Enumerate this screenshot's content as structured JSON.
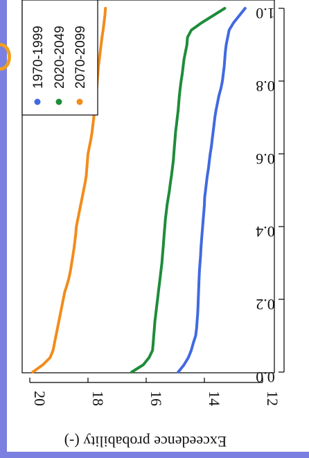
{
  "chart_data": {
    "type": "line",
    "orientation": "rotated-180",
    "xlabel": "Exceedence probability (-)",
    "ylabel": "",
    "xlim": [
      0,
      1
    ],
    "ylim": [
      12,
      20
    ],
    "x_ticks": [
      0.0,
      0.2,
      0.4,
      0.6,
      0.8,
      1.0
    ],
    "x_tick_labels": [
      "0.0",
      "0.2",
      "0.4",
      "0.6",
      "0.8",
      "1.0"
    ],
    "y_ticks": [
      12,
      14,
      16,
      18,
      20
    ],
    "y_tick_labels": [
      "12",
      "14",
      "16",
      "18",
      "20"
    ],
    "legend": {
      "position": "top-left"
    },
    "series": [
      {
        "name": "1970-1999",
        "color": "#4169e1",
        "x": [
          1.0,
          0.98,
          0.96,
          0.94,
          0.92,
          0.9,
          0.88,
          0.86,
          0.84,
          0.82,
          0.8,
          0.78,
          0.76,
          0.74,
          0.72,
          0.7,
          0.68,
          0.66,
          0.64,
          0.62,
          0.6,
          0.58,
          0.56,
          0.54,
          0.52,
          0.5,
          0.48,
          0.46,
          0.44,
          0.42,
          0.4,
          0.38,
          0.36,
          0.34,
          0.32,
          0.3,
          0.28,
          0.26,
          0.24,
          0.22,
          0.2,
          0.18,
          0.16,
          0.14,
          0.12,
          0.1,
          0.08,
          0.06,
          0.04,
          0.02,
          0.0
        ],
        "y": [
          12.6,
          12.8,
          13.0,
          13.15,
          13.2,
          13.25,
          13.28,
          13.3,
          13.32,
          13.35,
          13.38,
          13.43,
          13.5,
          13.55,
          13.6,
          13.64,
          13.67,
          13.7,
          13.73,
          13.76,
          13.8,
          13.83,
          13.86,
          13.9,
          13.93,
          13.96,
          13.99,
          14.0,
          14.02,
          14.04,
          14.06,
          14.08,
          14.1,
          14.12,
          14.13,
          14.15,
          14.17,
          14.18,
          14.19,
          14.2,
          14.21,
          14.22,
          14.23,
          14.25,
          14.27,
          14.3,
          14.38,
          14.45,
          14.55,
          14.7,
          14.9
        ]
      },
      {
        "name": "2020-2049",
        "color": "#1e8c3a",
        "x": [
          1.0,
          0.98,
          0.96,
          0.94,
          0.92,
          0.9,
          0.88,
          0.86,
          0.84,
          0.82,
          0.8,
          0.78,
          0.76,
          0.74,
          0.72,
          0.7,
          0.68,
          0.66,
          0.64,
          0.62,
          0.6,
          0.58,
          0.56,
          0.54,
          0.52,
          0.5,
          0.48,
          0.46,
          0.44,
          0.42,
          0.4,
          0.38,
          0.36,
          0.34,
          0.32,
          0.3,
          0.28,
          0.26,
          0.24,
          0.22,
          0.2,
          0.18,
          0.16,
          0.14,
          0.12,
          0.1,
          0.08,
          0.06,
          0.04,
          0.02,
          0.0
        ],
        "y": [
          13.3,
          13.7,
          14.1,
          14.45,
          14.58,
          14.6,
          14.65,
          14.7,
          14.73,
          14.76,
          14.8,
          14.83,
          14.86,
          14.88,
          14.9,
          14.93,
          14.96,
          14.99,
          15.01,
          15.03,
          15.05,
          15.07,
          15.1,
          15.13,
          15.17,
          15.2,
          15.24,
          15.28,
          15.31,
          15.34,
          15.36,
          15.38,
          15.4,
          15.42,
          15.44,
          15.46,
          15.49,
          15.52,
          15.55,
          15.58,
          15.61,
          15.64,
          15.67,
          15.7,
          15.72,
          15.74,
          15.76,
          15.78,
          15.9,
          16.1,
          16.5
        ]
      },
      {
        "name": "2070-2099",
        "color": "#f28c1c",
        "x": [
          1.0,
          0.98,
          0.96,
          0.94,
          0.92,
          0.9,
          0.88,
          0.86,
          0.84,
          0.82,
          0.8,
          0.78,
          0.76,
          0.74,
          0.72,
          0.7,
          0.68,
          0.66,
          0.64,
          0.62,
          0.6,
          0.58,
          0.56,
          0.54,
          0.52,
          0.5,
          0.48,
          0.46,
          0.44,
          0.42,
          0.4,
          0.38,
          0.36,
          0.34,
          0.32,
          0.3,
          0.28,
          0.26,
          0.24,
          0.22,
          0.2,
          0.18,
          0.16,
          0.14,
          0.12,
          0.1,
          0.08,
          0.06,
          0.04,
          0.02,
          0.0
        ],
        "y": [
          17.4,
          17.42,
          17.45,
          17.48,
          17.52,
          17.55,
          17.58,
          17.61,
          17.64,
          17.66,
          17.68,
          17.7,
          17.72,
          17.75,
          17.78,
          17.8,
          17.83,
          17.86,
          17.9,
          17.95,
          18.0,
          18.02,
          18.04,
          18.06,
          18.1,
          18.15,
          18.2,
          18.25,
          18.3,
          18.35,
          18.4,
          18.42,
          18.45,
          18.48,
          18.52,
          18.56,
          18.6,
          18.65,
          18.72,
          18.8,
          18.85,
          18.9,
          18.95,
          19.0,
          19.05,
          19.1,
          19.15,
          19.2,
          19.3,
          19.55,
          19.9
        ]
      }
    ]
  },
  "colors": {
    "left_strip": "#7b7fe0",
    "bottom_strip": "#7b7fe0",
    "marker_orange": "#f0a020"
  }
}
